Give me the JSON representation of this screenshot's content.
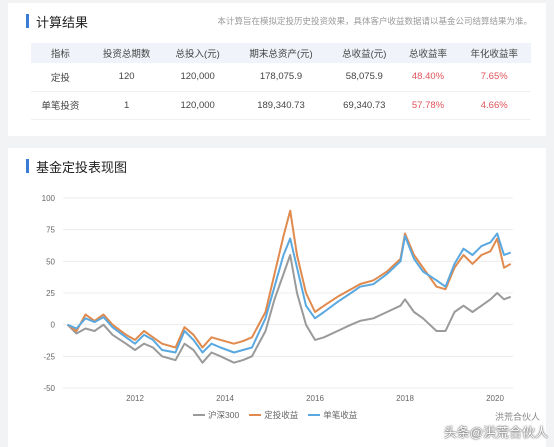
{
  "summary": {
    "title": "计算结果",
    "note": "本计算旨在模拟定投历史投资效果，具体客户收益数据请以基金公司结算结果为准。",
    "columns": [
      "指标",
      "投资总期数",
      "总投入(元)",
      "期末总资产(元)",
      "总收益(元)",
      "总收益率",
      "年化收益率"
    ],
    "rows": [
      [
        "定投",
        "120",
        "120,000",
        "178,075.9",
        "58,075.9",
        "48.40%",
        "7.65%"
      ],
      [
        "单笔投资",
        "1",
        "120,000",
        "189,340.73",
        "69,340.73",
        "57.78%",
        "4.66%"
      ]
    ]
  },
  "chart_section": {
    "title": "基金定投表现图"
  },
  "chart_data": {
    "type": "line",
    "yticks": [
      "100",
      "75",
      "50",
      "25",
      "0",
      "-25",
      "-50"
    ],
    "xticks": [
      "2012",
      "2014",
      "2016",
      "2018",
      "2020"
    ],
    "ylim": [
      -50,
      100
    ],
    "xlim": [
      2010.4,
      2020.4
    ],
    "series": [
      {
        "name": "沪深300",
        "color": "#9a9a9a",
        "points": [
          [
            2010.5,
            0
          ],
          [
            2010.7,
            -7
          ],
          [
            2010.9,
            -3
          ],
          [
            2011.1,
            -5
          ],
          [
            2011.3,
            0
          ],
          [
            2011.5,
            -8
          ],
          [
            2011.8,
            -15
          ],
          [
            2012.0,
            -20
          ],
          [
            2012.2,
            -15
          ],
          [
            2012.4,
            -18
          ],
          [
            2012.6,
            -25
          ],
          [
            2012.9,
            -28
          ],
          [
            2013.1,
            -15
          ],
          [
            2013.3,
            -20
          ],
          [
            2013.5,
            -30
          ],
          [
            2013.7,
            -22
          ],
          [
            2013.9,
            -25
          ],
          [
            2014.2,
            -30
          ],
          [
            2014.4,
            -28
          ],
          [
            2014.6,
            -25
          ],
          [
            2014.9,
            -5
          ],
          [
            2015.1,
            20
          ],
          [
            2015.3,
            40
          ],
          [
            2015.45,
            55
          ],
          [
            2015.6,
            25
          ],
          [
            2015.8,
            0
          ],
          [
            2016.0,
            -12
          ],
          [
            2016.2,
            -10
          ],
          [
            2016.5,
            -5
          ],
          [
            2016.8,
            0
          ],
          [
            2017.0,
            3
          ],
          [
            2017.3,
            5
          ],
          [
            2017.6,
            10
          ],
          [
            2017.9,
            15
          ],
          [
            2018.0,
            20
          ],
          [
            2018.2,
            10
          ],
          [
            2018.4,
            5
          ],
          [
            2018.7,
            -5
          ],
          [
            2018.9,
            -5
          ],
          [
            2019.1,
            10
          ],
          [
            2019.3,
            15
          ],
          [
            2019.5,
            10
          ],
          [
            2019.7,
            15
          ],
          [
            2019.9,
            20
          ],
          [
            2020.05,
            25
          ],
          [
            2020.2,
            20
          ],
          [
            2020.35,
            22
          ]
        ]
      },
      {
        "name": "定投收益",
        "color": "#e08a4e",
        "points": [
          [
            2010.5,
            0
          ],
          [
            2010.7,
            -5
          ],
          [
            2010.9,
            8
          ],
          [
            2011.1,
            3
          ],
          [
            2011.3,
            8
          ],
          [
            2011.5,
            0
          ],
          [
            2011.8,
            -8
          ],
          [
            2012.0,
            -12
          ],
          [
            2012.2,
            -5
          ],
          [
            2012.4,
            -10
          ],
          [
            2012.6,
            -15
          ],
          [
            2012.9,
            -18
          ],
          [
            2013.1,
            -2
          ],
          [
            2013.3,
            -8
          ],
          [
            2013.5,
            -18
          ],
          [
            2013.7,
            -10
          ],
          [
            2013.9,
            -12
          ],
          [
            2014.2,
            -15
          ],
          [
            2014.4,
            -13
          ],
          [
            2014.6,
            -10
          ],
          [
            2014.9,
            10
          ],
          [
            2015.1,
            40
          ],
          [
            2015.3,
            70
          ],
          [
            2015.45,
            90
          ],
          [
            2015.6,
            55
          ],
          [
            2015.8,
            25
          ],
          [
            2016.0,
            10
          ],
          [
            2016.2,
            15
          ],
          [
            2016.5,
            22
          ],
          [
            2016.8,
            28
          ],
          [
            2017.0,
            32
          ],
          [
            2017.3,
            35
          ],
          [
            2017.6,
            42
          ],
          [
            2017.9,
            52
          ],
          [
            2018.0,
            72
          ],
          [
            2018.2,
            55
          ],
          [
            2018.4,
            45
          ],
          [
            2018.7,
            30
          ],
          [
            2018.9,
            28
          ],
          [
            2019.1,
            45
          ],
          [
            2019.3,
            55
          ],
          [
            2019.5,
            48
          ],
          [
            2019.7,
            55
          ],
          [
            2019.9,
            58
          ],
          [
            2020.05,
            68
          ],
          [
            2020.2,
            45
          ],
          [
            2020.35,
            48
          ]
        ]
      },
      {
        "name": "单笔收益",
        "color": "#5aa8e0",
        "points": [
          [
            2010.5,
            0
          ],
          [
            2010.7,
            -3
          ],
          [
            2010.9,
            5
          ],
          [
            2011.1,
            2
          ],
          [
            2011.3,
            6
          ],
          [
            2011.5,
            -2
          ],
          [
            2011.8,
            -10
          ],
          [
            2012.0,
            -15
          ],
          [
            2012.2,
            -8
          ],
          [
            2012.4,
            -12
          ],
          [
            2012.6,
            -20
          ],
          [
            2012.9,
            -22
          ],
          [
            2013.1,
            -5
          ],
          [
            2013.3,
            -12
          ],
          [
            2013.5,
            -22
          ],
          [
            2013.7,
            -15
          ],
          [
            2013.9,
            -18
          ],
          [
            2014.2,
            -22
          ],
          [
            2014.4,
            -20
          ],
          [
            2014.6,
            -18
          ],
          [
            2014.9,
            5
          ],
          [
            2015.1,
            30
          ],
          [
            2015.3,
            55
          ],
          [
            2015.45,
            68
          ],
          [
            2015.6,
            45
          ],
          [
            2015.8,
            15
          ],
          [
            2016.0,
            5
          ],
          [
            2016.2,
            10
          ],
          [
            2016.5,
            18
          ],
          [
            2016.8,
            25
          ],
          [
            2017.0,
            30
          ],
          [
            2017.3,
            32
          ],
          [
            2017.6,
            40
          ],
          [
            2017.9,
            50
          ],
          [
            2018.0,
            70
          ],
          [
            2018.2,
            52
          ],
          [
            2018.4,
            42
          ],
          [
            2018.7,
            35
          ],
          [
            2018.9,
            30
          ],
          [
            2019.1,
            48
          ],
          [
            2019.3,
            60
          ],
          [
            2019.5,
            55
          ],
          [
            2019.7,
            62
          ],
          [
            2019.9,
            65
          ],
          [
            2020.05,
            72
          ],
          [
            2020.2,
            55
          ],
          [
            2020.35,
            57
          ]
        ]
      }
    ]
  },
  "watermark": {
    "text": "头条@洪荒合伙人",
    "sub": "洪荒合伙人"
  }
}
